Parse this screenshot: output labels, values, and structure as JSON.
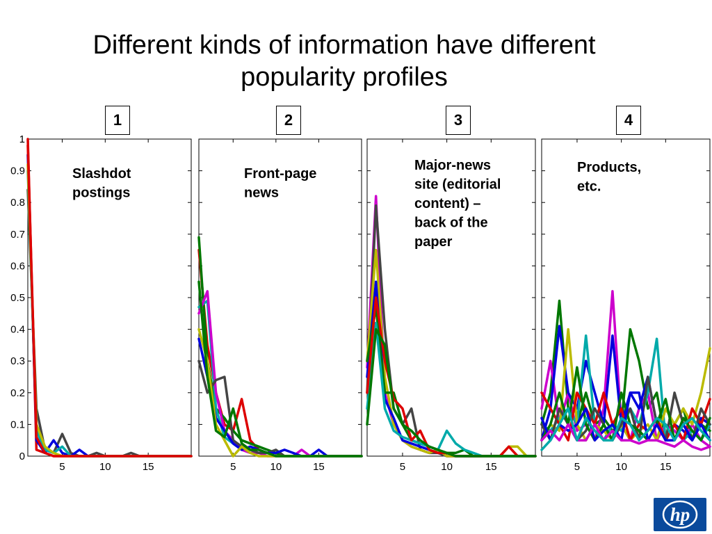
{
  "title_line1": "Different kinds of information have different",
  "title_line2": "popularity profiles",
  "panel_numbers": [
    "1",
    "2",
    "3",
    "4"
  ],
  "chart_data": [
    {
      "type": "line",
      "annotation": [
        "Slashdot",
        "postings"
      ],
      "ylim": [
        0,
        1
      ],
      "xlim": [
        1,
        20
      ],
      "yticks": [
        0,
        0.1,
        0.2,
        0.3,
        0.4,
        0.5,
        0.6,
        0.7,
        0.8,
        0.9,
        1
      ],
      "xticks": [
        5,
        10,
        15
      ],
      "series": [
        {
          "color": "#dd0000",
          "values": [
            1.0,
            0.02,
            0.01,
            0.0,
            0.0,
            0.0,
            0.0,
            0.0,
            0.0,
            0.0,
            0.0,
            0.0,
            0.0,
            0.0,
            0.0,
            0.0,
            0.0,
            0.0,
            0.0,
            0.0
          ]
        },
        {
          "color": "#444444",
          "values": [
            0.84,
            0.15,
            0.02,
            0.01,
            0.07,
            0.01,
            0.0,
            0.0,
            0.01,
            0.0,
            0.0,
            0.0,
            0.01,
            0.0,
            0.0,
            0.0,
            0.0,
            0.0,
            0.0,
            0.0
          ]
        },
        {
          "color": "#0000dd",
          "values": [
            0.95,
            0.05,
            0.01,
            0.05,
            0.01,
            0.0,
            0.02,
            0.0,
            0.0,
            0.0,
            0.0,
            0.0,
            0.0,
            0.0,
            0.0,
            0.0,
            0.0,
            0.0,
            0.0,
            0.0
          ]
        },
        {
          "color": "#00aaaa",
          "values": [
            0.9,
            0.08,
            0.02,
            0.01,
            0.03,
            0.0,
            0.0,
            0.0,
            0.0,
            0.0,
            0.0,
            0.0,
            0.0,
            0.0,
            0.0,
            0.0,
            0.0,
            0.0,
            0.0,
            0.0
          ]
        },
        {
          "color": "#bbbb00",
          "values": [
            0.92,
            0.1,
            0.03,
            0.01,
            0.0,
            0.0,
            0.0,
            0.0,
            0.0,
            0.0,
            0.0,
            0.0,
            0.0,
            0.0,
            0.0,
            0.0,
            0.0,
            0.0,
            0.0,
            0.0
          ]
        },
        {
          "color": "#dd0000",
          "values": [
            0.98,
            0.06,
            0.01,
            0.0,
            0.0,
            0.0,
            0.0,
            0.0,
            0.0,
            0.0,
            0.0,
            0.0,
            0.0,
            0.0,
            0.0,
            0.0,
            0.0,
            0.0,
            0.0,
            0.0
          ]
        }
      ]
    },
    {
      "type": "line",
      "annotation": [
        "Front-page",
        "news"
      ],
      "ylim": [
        0,
        1
      ],
      "xlim": [
        1,
        20
      ],
      "xticks": [
        5,
        10,
        15
      ],
      "series": [
        {
          "color": "#dd0000",
          "values": [
            0.65,
            0.35,
            0.2,
            0.1,
            0.08,
            0.18,
            0.05,
            0.02,
            0.01,
            0.01,
            0.0,
            0.0,
            0.0,
            0.0,
            0.0,
            0.0,
            0.0,
            0.0,
            0.0,
            0.0
          ]
        },
        {
          "color": "#007700",
          "values": [
            0.69,
            0.3,
            0.15,
            0.12,
            0.08,
            0.05,
            0.04,
            0.03,
            0.02,
            0.01,
            0.0,
            0.0,
            0.0,
            0.0,
            0.0,
            0.0,
            0.0,
            0.0,
            0.0,
            0.0
          ]
        },
        {
          "color": "#00aaaa",
          "values": [
            0.47,
            0.49,
            0.15,
            0.06,
            0.04,
            0.02,
            0.02,
            0.01,
            0.01,
            0.0,
            0.0,
            0.0,
            0.0,
            0.0,
            0.0,
            0.0,
            0.0,
            0.0,
            0.0,
            0.0
          ]
        },
        {
          "color": "#cc00cc",
          "values": [
            0.45,
            0.52,
            0.2,
            0.08,
            0.05,
            0.02,
            0.01,
            0.01,
            0.0,
            0.0,
            0.0,
            0.0,
            0.02,
            0.0,
            0.0,
            0.0,
            0.0,
            0.0,
            0.0,
            0.0
          ]
        },
        {
          "color": "#444444",
          "values": [
            0.3,
            0.2,
            0.24,
            0.25,
            0.05,
            0.03,
            0.02,
            0.01,
            0.01,
            0.02,
            0.0,
            0.0,
            0.0,
            0.0,
            0.0,
            0.0,
            0.0,
            0.0,
            0.0,
            0.0
          ]
        },
        {
          "color": "#0000dd",
          "values": [
            0.37,
            0.25,
            0.12,
            0.08,
            0.04,
            0.02,
            0.03,
            0.02,
            0.01,
            0.01,
            0.02,
            0.01,
            0.0,
            0.0,
            0.02,
            0.0,
            0.0,
            0.0,
            0.0,
            0.0
          ]
        },
        {
          "color": "#bbbb00",
          "values": [
            0.4,
            0.3,
            0.1,
            0.05,
            0.0,
            0.03,
            0.01,
            0.0,
            0.0,
            0.0,
            0.0,
            0.0,
            0.0,
            0.0,
            0.0,
            0.0,
            0.0,
            0.0,
            0.0,
            0.0
          ]
        },
        {
          "color": "#007700",
          "values": [
            0.55,
            0.25,
            0.08,
            0.06,
            0.15,
            0.04,
            0.02,
            0.02,
            0.01,
            0.0,
            0.0,
            0.0,
            0.0,
            0.0,
            0.0,
            0.0,
            0.0,
            0.0,
            0.0,
            0.0
          ]
        }
      ]
    },
    {
      "type": "line",
      "annotation": [
        "Major-news",
        "site (editorial",
        "content) –",
        "back of the",
        "paper"
      ],
      "ylim": [
        0,
        1
      ],
      "xlim": [
        1,
        20
      ],
      "xticks": [
        5,
        10,
        15
      ],
      "series": [
        {
          "color": "#cc00cc",
          "values": [
            0.28,
            0.82,
            0.2,
            0.1,
            0.05,
            0.03,
            0.02,
            0.01,
            0.01,
            0.0,
            0.0,
            0.0,
            0.0,
            0.0,
            0.0,
            0.0,
            0.0,
            0.0,
            0.0,
            0.0
          ]
        },
        {
          "color": "#444444",
          "values": [
            0.2,
            0.79,
            0.4,
            0.15,
            0.1,
            0.15,
            0.02,
            0.01,
            0.01,
            0.0,
            0.0,
            0.0,
            0.0,
            0.0,
            0.0,
            0.0,
            0.0,
            0.0,
            0.0,
            0.0
          ]
        },
        {
          "color": "#bbbb00",
          "values": [
            0.3,
            0.65,
            0.25,
            0.1,
            0.05,
            0.03,
            0.02,
            0.01,
            0.02,
            0.0,
            0.0,
            0.0,
            0.0,
            0.0,
            0.0,
            0.0,
            0.03,
            0.03,
            0.0,
            0.0
          ]
        },
        {
          "color": "#0000dd",
          "values": [
            0.25,
            0.55,
            0.18,
            0.12,
            0.05,
            0.04,
            0.03,
            0.02,
            0.01,
            0.01,
            0.0,
            0.0,
            0.0,
            0.0,
            0.0,
            0.0,
            0.0,
            0.0,
            0.0,
            0.0
          ]
        },
        {
          "color": "#007700",
          "values": [
            0.3,
            0.47,
            0.2,
            0.2,
            0.1,
            0.05,
            0.04,
            0.03,
            0.02,
            0.01,
            0.01,
            0.02,
            0.0,
            0.0,
            0.0,
            0.0,
            0.0,
            0.0,
            0.0,
            0.0
          ]
        },
        {
          "color": "#00aaaa",
          "values": [
            0.15,
            0.42,
            0.15,
            0.08,
            0.06,
            0.05,
            0.04,
            0.03,
            0.02,
            0.08,
            0.04,
            0.02,
            0.01,
            0.0,
            0.0,
            0.0,
            0.0,
            0.0,
            0.0,
            0.0
          ]
        },
        {
          "color": "#dd0000",
          "values": [
            0.2,
            0.5,
            0.3,
            0.18,
            0.15,
            0.05,
            0.08,
            0.02,
            0.01,
            0.01,
            0.0,
            0.0,
            0.0,
            0.0,
            0.0,
            0.0,
            0.03,
            0.0,
            0.0,
            0.0
          ]
        },
        {
          "color": "#007700",
          "values": [
            0.1,
            0.4,
            0.35,
            0.15,
            0.1,
            0.08,
            0.05,
            0.03,
            0.02,
            0.01,
            0.0,
            0.0,
            0.0,
            0.0,
            0.0,
            0.0,
            0.0,
            0.0,
            0.0,
            0.0
          ]
        }
      ]
    },
    {
      "type": "line",
      "annotation": [
        "Products,",
        "etc."
      ],
      "ylim": [
        0,
        1
      ],
      "xlim": [
        1,
        20
      ],
      "xticks": [
        5,
        10,
        15
      ],
      "series": [
        {
          "color": "#007700",
          "values": [
            0.1,
            0.2,
            0.49,
            0.15,
            0.1,
            0.2,
            0.1,
            0.12,
            0.08,
            0.1,
            0.4,
            0.3,
            0.15,
            0.2,
            0.05,
            0.1,
            0.15,
            0.05,
            0.1,
            0.08
          ]
        },
        {
          "color": "#cc00cc",
          "values": [
            0.15,
            0.3,
            0.1,
            0.2,
            0.08,
            0.1,
            0.05,
            0.15,
            0.52,
            0.1,
            0.05,
            0.15,
            0.2,
            0.05,
            0.1,
            0.08,
            0.05,
            0.1,
            0.05,
            0.03
          ]
        },
        {
          "color": "#0000dd",
          "values": [
            0.05,
            0.15,
            0.41,
            0.2,
            0.15,
            0.3,
            0.2,
            0.1,
            0.38,
            0.1,
            0.2,
            0.15,
            0.25,
            0.1,
            0.05,
            0.1,
            0.08,
            0.05,
            0.12,
            0.1
          ]
        },
        {
          "color": "#00aaaa",
          "values": [
            0.1,
            0.08,
            0.12,
            0.15,
            0.1,
            0.38,
            0.1,
            0.05,
            0.1,
            0.08,
            0.15,
            0.1,
            0.2,
            0.37,
            0.05,
            0.1,
            0.05,
            0.08,
            0.05,
            0.1
          ]
        },
        {
          "color": "#bbbb00",
          "values": [
            0.05,
            0.1,
            0.08,
            0.4,
            0.1,
            0.05,
            0.1,
            0.08,
            0.05,
            0.1,
            0.05,
            0.08,
            0.1,
            0.05,
            0.15,
            0.1,
            0.15,
            0.1,
            0.2,
            0.34
          ]
        },
        {
          "color": "#dd0000",
          "values": [
            0.2,
            0.15,
            0.1,
            0.05,
            0.2,
            0.15,
            0.1,
            0.2,
            0.1,
            0.15,
            0.05,
            0.1,
            0.08,
            0.12,
            0.05,
            0.1,
            0.05,
            0.15,
            0.1,
            0.18
          ]
        },
        {
          "color": "#444444",
          "values": [
            0.1,
            0.05,
            0.15,
            0.1,
            0.05,
            0.08,
            0.15,
            0.1,
            0.05,
            0.1,
            0.15,
            0.05,
            0.25,
            0.1,
            0.05,
            0.2,
            0.1,
            0.05,
            0.15,
            0.1
          ]
        },
        {
          "color": "#007700",
          "values": [
            0.05,
            0.1,
            0.2,
            0.1,
            0.28,
            0.1,
            0.05,
            0.1,
            0.05,
            0.2,
            0.1,
            0.08,
            0.05,
            0.1,
            0.18,
            0.05,
            0.12,
            0.08,
            0.05,
            0.12
          ]
        },
        {
          "color": "#0000dd",
          "values": [
            0.12,
            0.05,
            0.1,
            0.08,
            0.1,
            0.15,
            0.05,
            0.08,
            0.1,
            0.05,
            0.2,
            0.2,
            0.05,
            0.1,
            0.05,
            0.05,
            0.1,
            0.05,
            0.1,
            0.05
          ]
        },
        {
          "color": "#cc00cc",
          "values": [
            0.05,
            0.08,
            0.05,
            0.1,
            0.05,
            0.05,
            0.1,
            0.05,
            0.08,
            0.05,
            0.05,
            0.04,
            0.05,
            0.05,
            0.04,
            0.03,
            0.05,
            0.03,
            0.02,
            0.03
          ]
        },
        {
          "color": "#00aaaa",
          "values": [
            0.02,
            0.05,
            0.1,
            0.15,
            0.05,
            0.12,
            0.08,
            0.05,
            0.05,
            0.12,
            0.1,
            0.05,
            0.08,
            0.12,
            0.1,
            0.05,
            0.1,
            0.12,
            0.08,
            0.05
          ]
        }
      ]
    }
  ]
}
